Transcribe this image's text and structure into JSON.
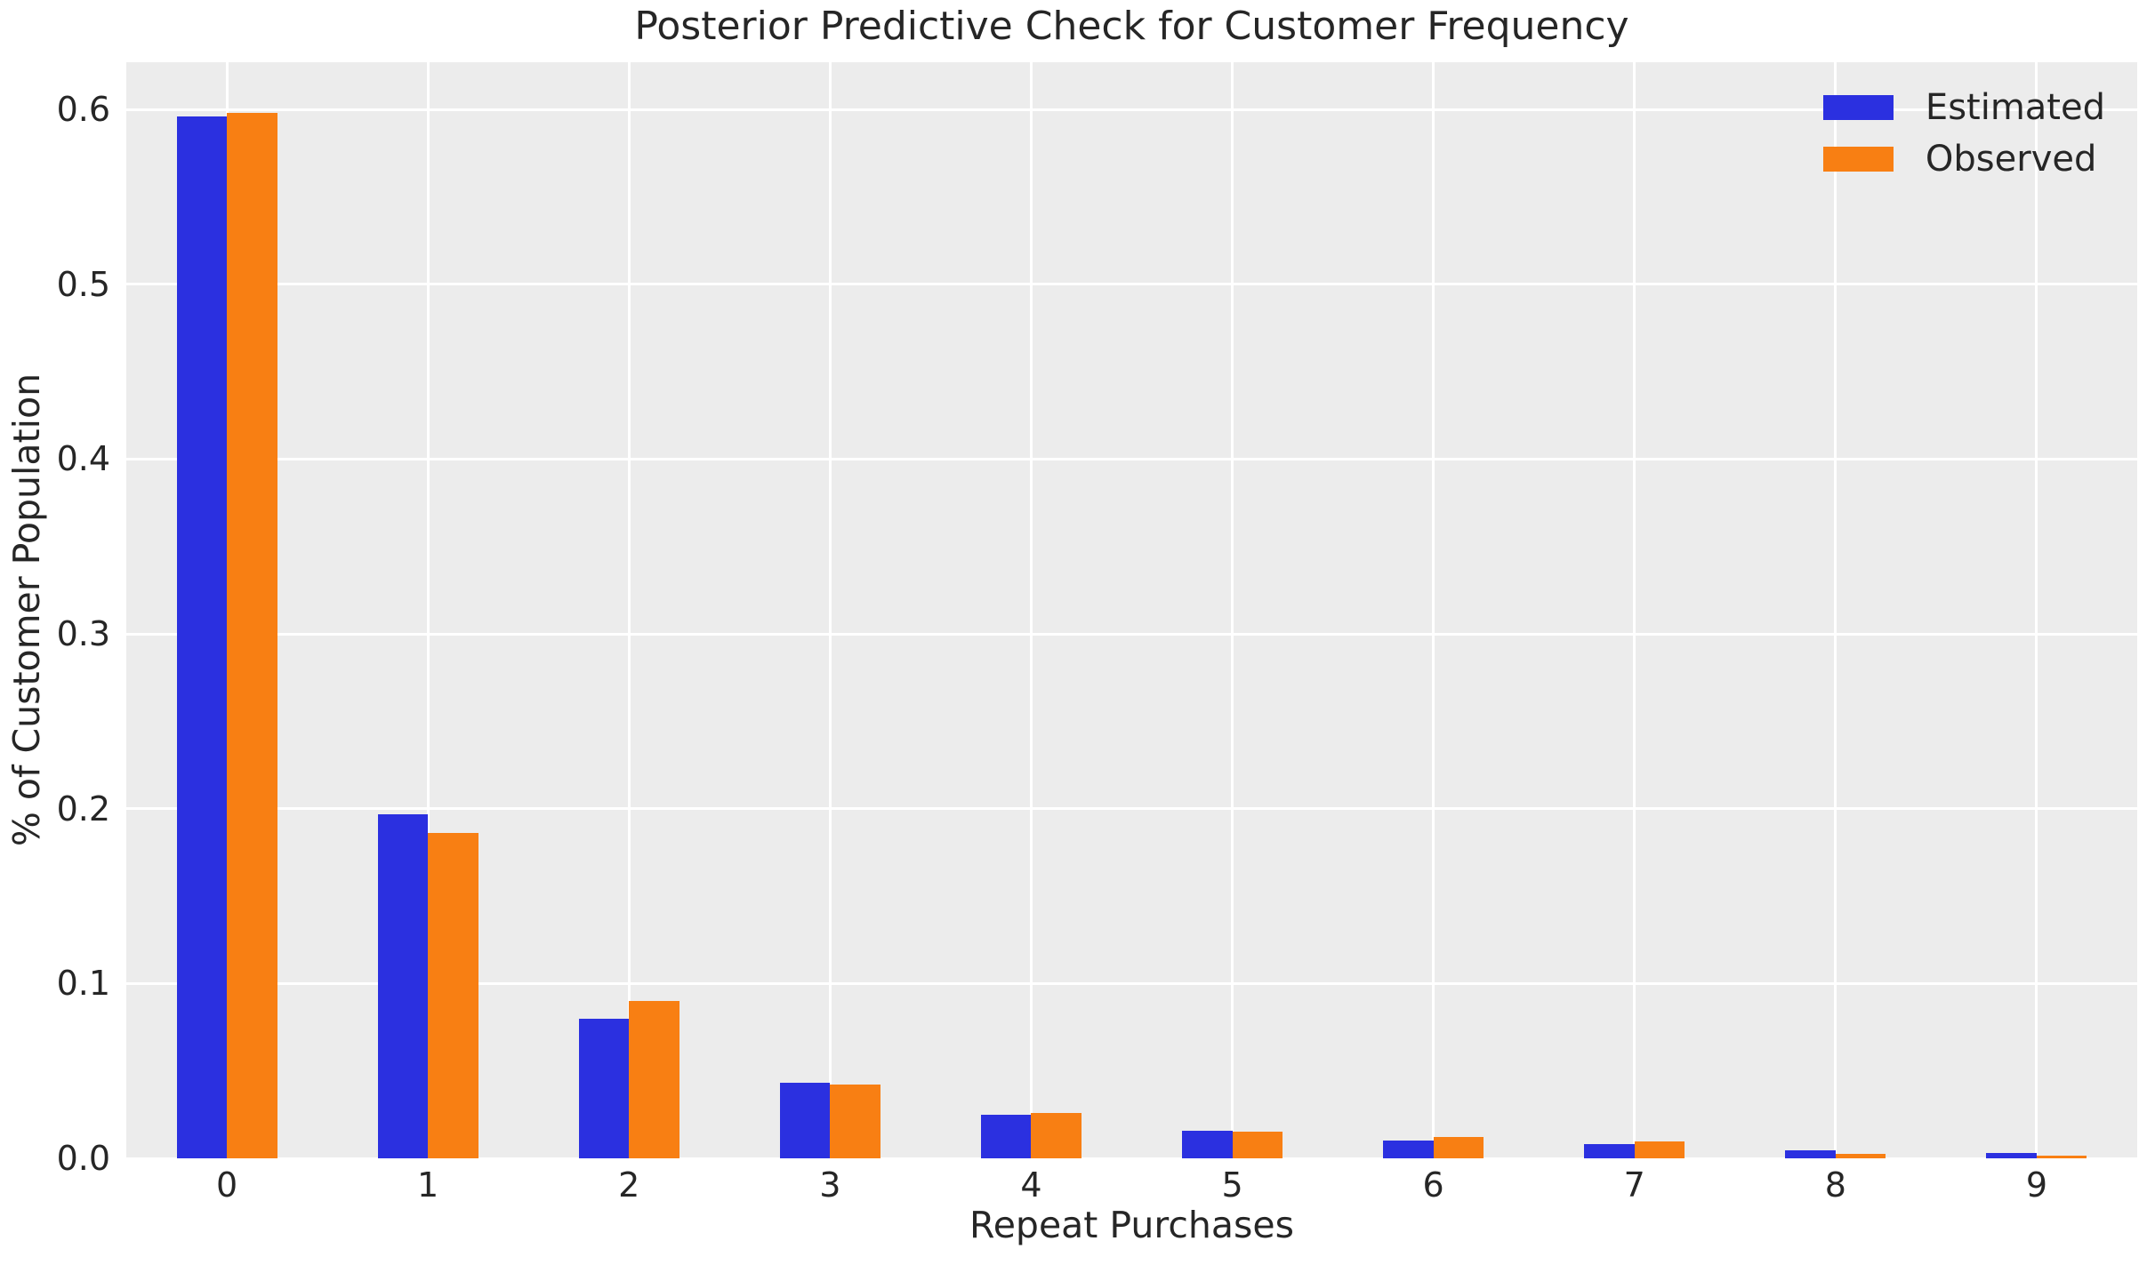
{
  "chart_data": {
    "type": "bar",
    "title": "Posterior Predictive Check for Customer Frequency",
    "xlabel": "Repeat Purchases",
    "ylabel": "% of Customer Population",
    "categories": [
      "0",
      "1",
      "2",
      "3",
      "4",
      "5",
      "6",
      "7",
      "8",
      "9"
    ],
    "series": [
      {
        "name": "Estimated",
        "color": "#2b30e0",
        "values": [
          0.596,
          0.197,
          0.08,
          0.043,
          0.025,
          0.016,
          0.01,
          0.008,
          0.0047,
          0.003
        ]
      },
      {
        "name": "Observed",
        "color": "#f87f13",
        "values": [
          0.598,
          0.186,
          0.09,
          0.042,
          0.026,
          0.0155,
          0.012,
          0.0095,
          0.0025,
          0.0015
        ]
      }
    ],
    "yticks": [
      "0.0",
      "0.1",
      "0.2",
      "0.3",
      "0.4",
      "0.5",
      "0.6"
    ],
    "ylim": [
      0,
      0.627
    ],
    "xlim": [
      -0.5,
      9.5
    ],
    "bar_width": 0.25,
    "grid": true,
    "legend_position": "upper right"
  }
}
